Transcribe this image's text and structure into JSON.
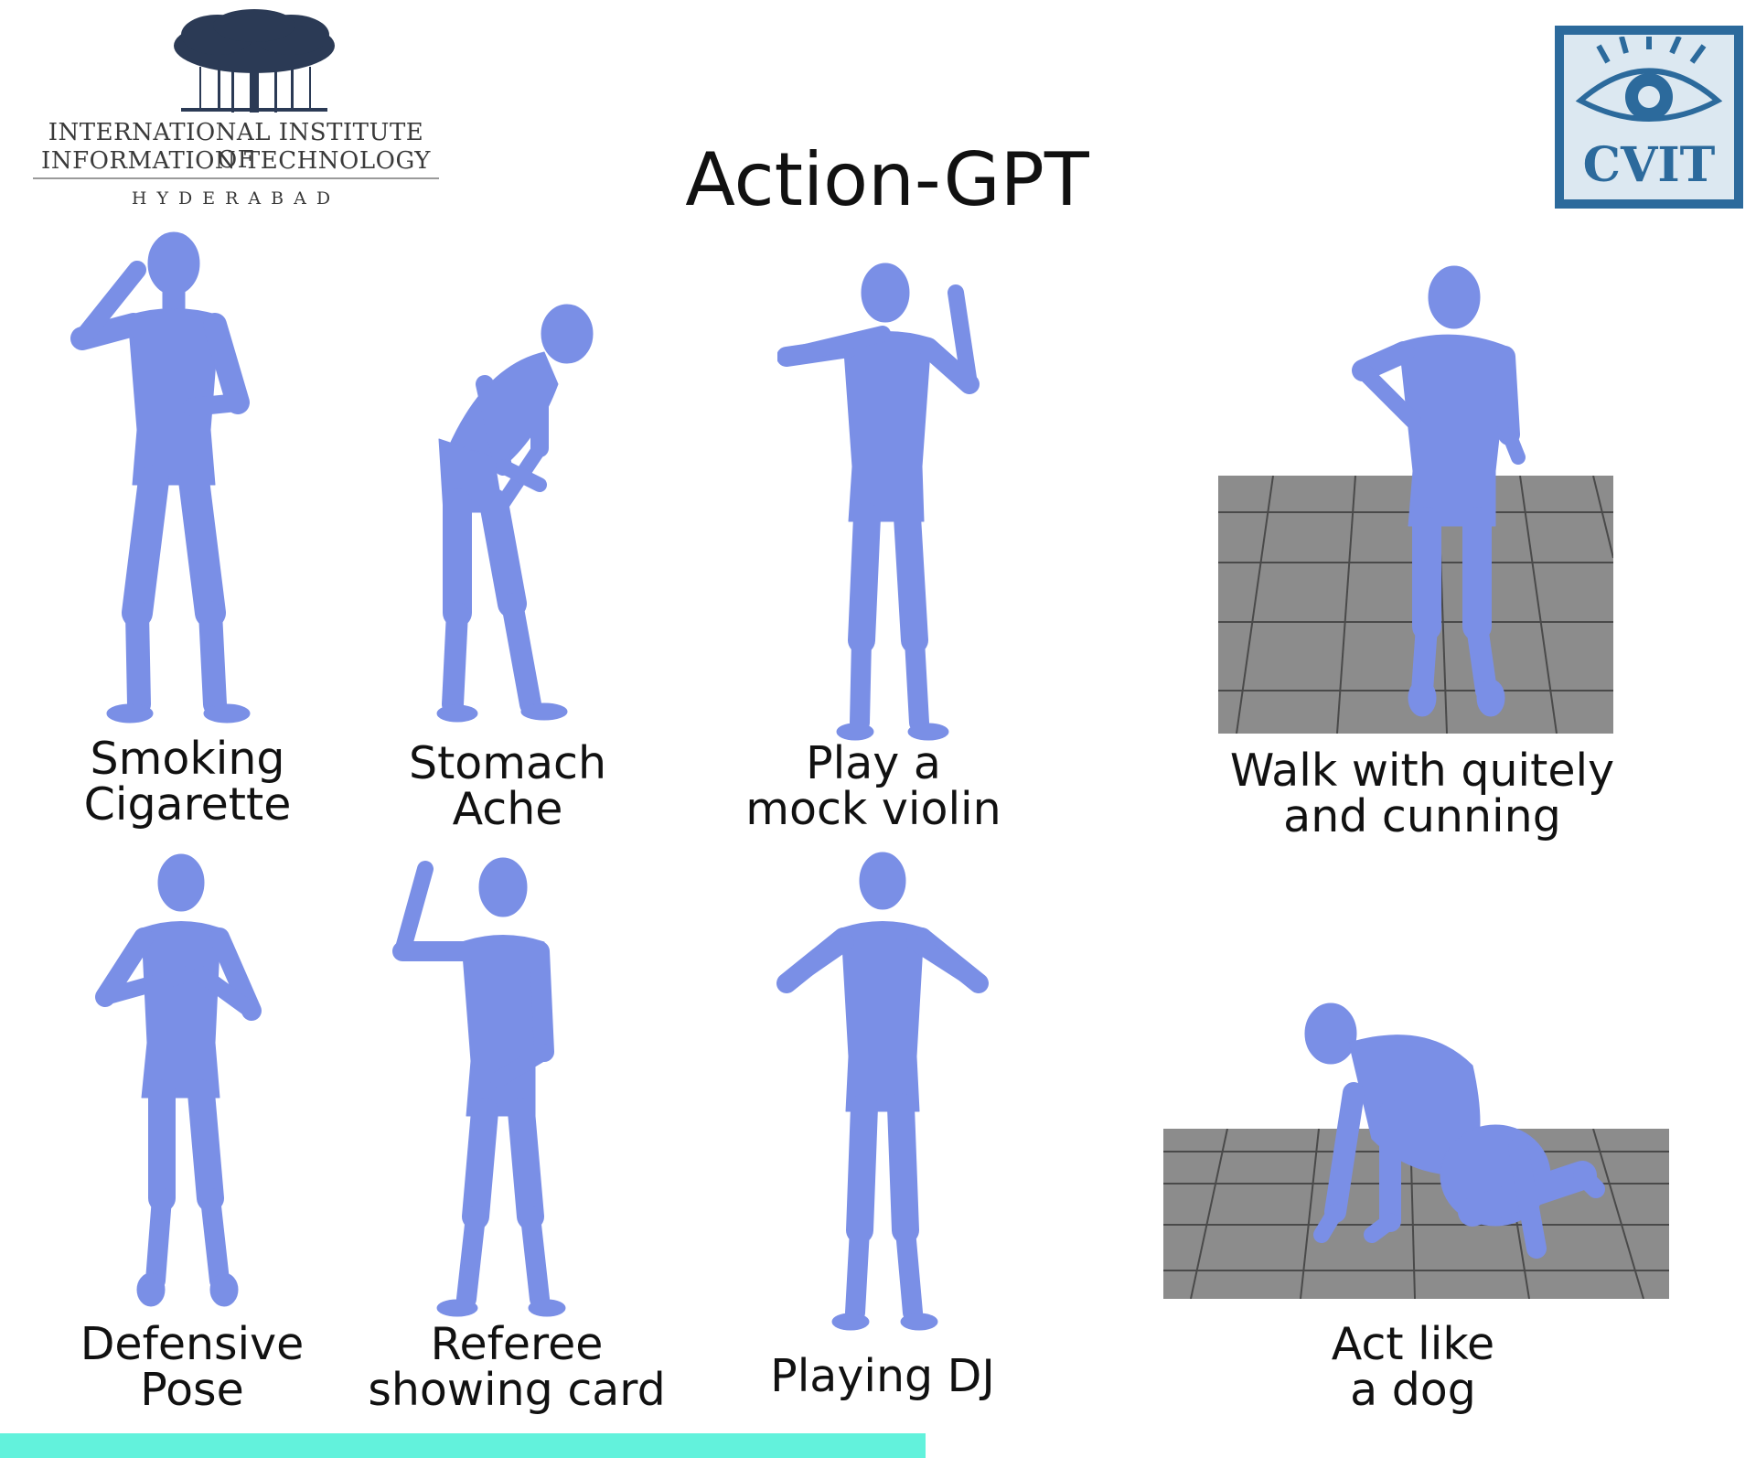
{
  "header": {
    "title": "Action-GPT",
    "institute_logo": {
      "line1": "INTERNATIONAL INSTITUTE OF",
      "line2": "INFORMATION TECHNOLOGY",
      "city": "HYDERABAD"
    },
    "lab_logo": {
      "text": "CVIT"
    }
  },
  "colors": {
    "figure": "#7a8fe6",
    "floor": "#8c8c8c",
    "floor_lines": "#4a4a4a",
    "progress": "#62f2dc",
    "logo_blue": "#2c6a9c"
  },
  "actions": [
    {
      "line1": "Smoking",
      "line2": "Cigarette"
    },
    {
      "line1": "Stomach",
      "line2": "Ache"
    },
    {
      "line1": "Play a",
      "line2": "mock violin"
    },
    {
      "line1": "Walk with quitely",
      "line2": "and cunning"
    },
    {
      "line1": "Defensive",
      "line2": "Pose"
    },
    {
      "line1": "Referee",
      "line2": "showing card"
    },
    {
      "line1": "Playing DJ",
      "line2": ""
    },
    {
      "line1": "Act like",
      "line2": "a dog"
    }
  ]
}
